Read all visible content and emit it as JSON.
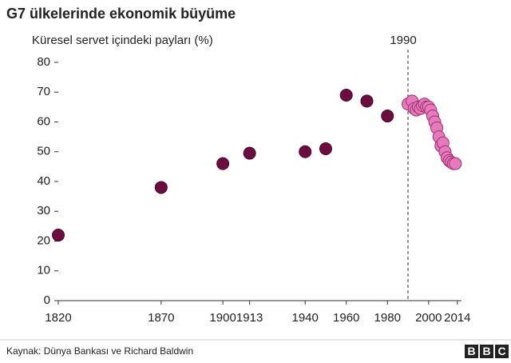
{
  "chart_data": {
    "type": "scatter",
    "title": "G7 ülkelerinde ekonomik büyüme",
    "y_label": "Küresel servet içindeki payları (%)",
    "source": "Kaynak: Dünya Bankası ve Richard Baldwin",
    "logo": [
      "B",
      "B",
      "C"
    ],
    "annotations": [
      {
        "text": "1990",
        "x": 1990
      }
    ],
    "xlim": [
      1820,
      2016
    ],
    "xticks": [
      1820,
      1870,
      1900,
      1913,
      1940,
      1960,
      1980,
      2000,
      2014
    ],
    "ylim": [
      0,
      80
    ],
    "yticks": [
      0,
      10,
      20,
      30,
      40,
      50,
      60,
      70,
      80
    ],
    "grid": false,
    "series": [
      {
        "color": "#6b0d3e",
        "stroke": "#4a0829",
        "x": [
          1820,
          1870,
          1900,
          1913,
          1940,
          1950,
          1960,
          1970,
          1980
        ],
        "values": [
          22,
          38,
          46,
          49.5,
          50,
          51,
          69,
          67,
          62
        ]
      },
      {
        "color": "#e57bbd",
        "stroke": "#a0306e",
        "x": [
          1990,
          1992,
          1993,
          1994,
          1995,
          1996,
          1997,
          1998,
          1999,
          2000,
          2001,
          2002,
          2003,
          2004,
          2005,
          2006,
          2007,
          2008,
          2009,
          2010,
          2011,
          2012,
          2013
        ],
        "values": [
          66,
          67,
          64.5,
          64,
          65,
          64.5,
          65.5,
          66,
          65,
          65,
          64,
          62,
          60,
          58,
          55,
          52,
          53,
          50,
          48,
          47,
          46.5,
          46,
          46
        ]
      }
    ]
  }
}
